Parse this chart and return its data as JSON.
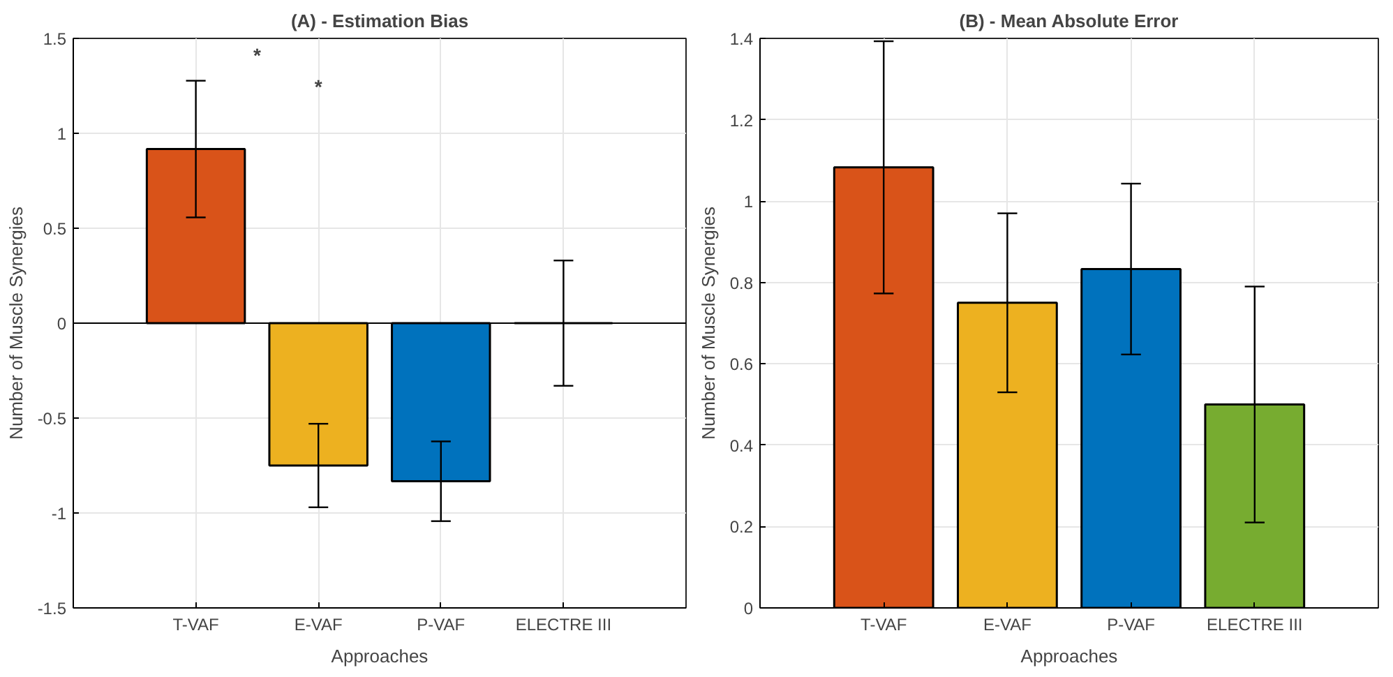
{
  "chart_data": [
    {
      "type": "bar",
      "title": "(A) - Estimation Bias",
      "xlabel": "Approaches",
      "ylabel": "Number of Muscle Synergies",
      "categories": [
        "T-VAF",
        "E-VAF",
        "P-VAF",
        "ELECTRE III"
      ],
      "values": [
        0.917,
        -0.75,
        -0.833,
        0
      ],
      "errors": [
        0.36,
        0.22,
        0.21,
        0.33
      ],
      "colors": [
        "#d95319",
        "#edb120",
        "#0072bd",
        "#000000"
      ],
      "ylim": [
        -1.5,
        1.5
      ],
      "yticks": [
        -1.5,
        -1,
        -0.5,
        0,
        0.5,
        1,
        1.5
      ],
      "grid": true,
      "ref_lines": [
        {
          "axis": "y",
          "value": 0,
          "color": "#000000"
        }
      ],
      "annotations": [
        "*",
        "*"
      ]
    },
    {
      "type": "bar",
      "title": "(B) - Mean Absolute Error",
      "xlabel": "Approaches",
      "ylabel": "Number of Muscle Synergies",
      "categories": [
        "T-VAF",
        "E-VAF",
        "P-VAF",
        "ELECTRE III"
      ],
      "values": [
        1.083,
        0.75,
        0.833,
        0.5
      ],
      "errors": [
        0.31,
        0.22,
        0.21,
        0.29
      ],
      "colors": [
        "#d95319",
        "#edb120",
        "#0072bd",
        "#77ac30"
      ],
      "ylim": [
        0,
        1.4
      ],
      "yticks": [
        0,
        0.2,
        0.4,
        0.6,
        0.8,
        1,
        1.2,
        1.4
      ],
      "grid": true
    }
  ]
}
